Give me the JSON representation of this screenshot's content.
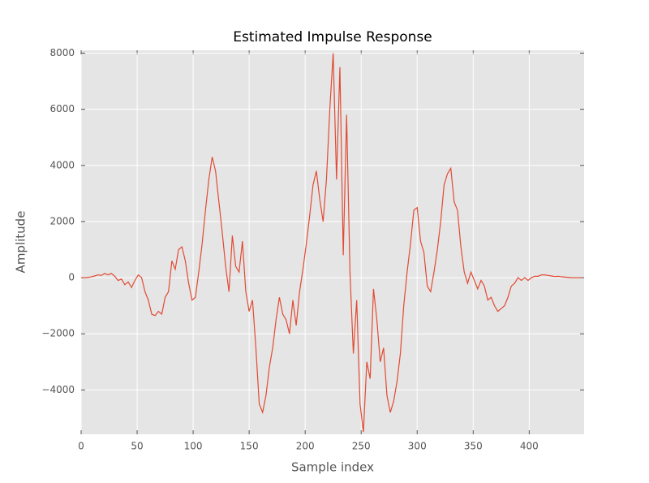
{
  "chart_data": {
    "type": "line",
    "title": "Estimated Impulse Response",
    "xlabel": "Sample index",
    "ylabel": "Amplitude",
    "x": [
      0,
      3,
      6,
      9,
      12,
      15,
      18,
      21,
      24,
      27,
      30,
      33,
      36,
      39,
      42,
      45,
      48,
      51,
      54,
      57,
      60,
      63,
      66,
      69,
      72,
      75,
      78,
      81,
      84,
      87,
      90,
      93,
      96,
      99,
      102,
      105,
      108,
      111,
      114,
      117,
      120,
      123,
      126,
      129,
      132,
      135,
      138,
      141,
      144,
      147,
      150,
      153,
      156,
      159,
      162,
      165,
      168,
      171,
      174,
      177,
      180,
      183,
      186,
      189,
      192,
      195,
      198,
      201,
      204,
      207,
      210,
      213,
      216,
      219,
      222,
      225,
      228,
      231,
      234,
      237,
      240,
      243,
      246,
      249,
      252,
      255,
      258,
      261,
      264,
      267,
      270,
      273,
      276,
      279,
      282,
      285,
      288,
      291,
      294,
      297,
      300,
      303,
      306,
      309,
      312,
      315,
      318,
      321,
      324,
      327,
      330,
      333,
      336,
      339,
      342,
      345,
      348,
      351,
      354,
      357,
      360,
      363,
      366,
      369,
      372,
      375,
      378,
      381,
      384,
      387,
      390,
      393,
      396,
      399,
      402,
      405,
      408,
      411,
      414,
      417,
      420,
      423,
      426,
      429,
      432,
      435,
      438,
      441,
      444,
      447
    ],
    "series": [
      {
        "name": "Impulse response",
        "color": "#e24a33",
        "values": [
          0,
          0,
          10,
          30,
          60,
          100,
          80,
          150,
          100,
          150,
          50,
          -100,
          -50,
          -250,
          -150,
          -350,
          -100,
          100,
          0,
          -500,
          -800,
          -1300,
          -1350,
          -1200,
          -1300,
          -700,
          -500,
          600,
          300,
          1000,
          1100,
          600,
          -200,
          -800,
          -700,
          200,
          1200,
          2400,
          3500,
          4300,
          3800,
          2700,
          1600,
          400,
          -500,
          1500,
          400,
          200,
          1300,
          -500,
          -1200,
          -800,
          -2500,
          -4500,
          -4800,
          -4200,
          -3200,
          -2500,
          -1500,
          -700,
          -1300,
          -1500,
          -2000,
          -800,
          -1700,
          -500,
          300,
          1200,
          2200,
          3300,
          3800,
          2800,
          2000,
          3500,
          6000,
          8000,
          3500,
          7500,
          800,
          5800,
          200,
          -2700,
          -800,
          -4500,
          -5500,
          -3000,
          -3600,
          -400,
          -1500,
          -3000,
          -2500,
          -4200,
          -4800,
          -4400,
          -3700,
          -2700,
          -1000,
          200,
          1200,
          2400,
          2500,
          1300,
          900,
          -300,
          -500,
          200,
          1000,
          2000,
          3300,
          3700,
          3900,
          2700,
          2400,
          1100,
          200,
          -200,
          200,
          -100,
          -400,
          -100,
          -300,
          -800,
          -700,
          -1000,
          -1200,
          -1100,
          -1000,
          -700,
          -300,
          -200,
          0,
          -100,
          0,
          -100,
          0,
          50,
          50,
          100,
          100,
          80,
          60,
          40,
          50,
          30,
          20,
          10,
          0,
          0,
          0,
          0
        ]
      }
    ],
    "xlim": [
      0,
      449
    ],
    "ylim": [
      -5580,
      8100
    ],
    "xticks": [
      0,
      50,
      100,
      150,
      200,
      250,
      300,
      350,
      400
    ],
    "yticks": [
      {
        "value": -4000,
        "label": "−4000"
      },
      {
        "value": -2000,
        "label": "−2000"
      },
      0,
      2000,
      4000,
      6000,
      8000
    ],
    "grid": true
  }
}
